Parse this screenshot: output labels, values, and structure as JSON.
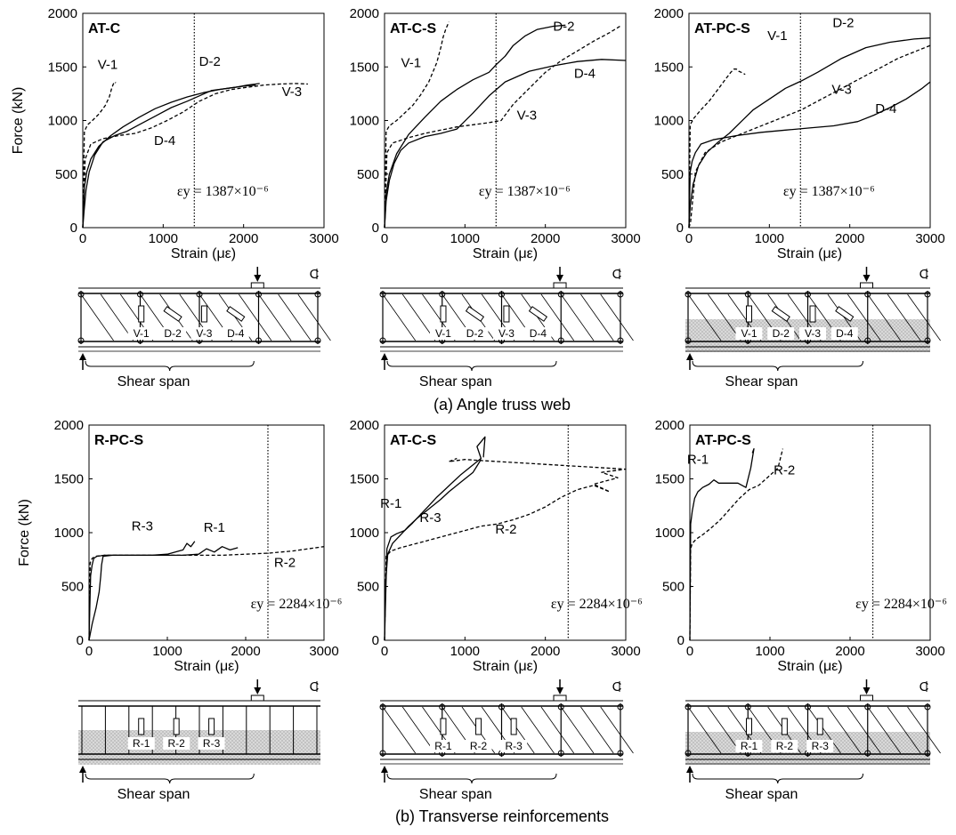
{
  "captions": {
    "a": "(a) Angle truss web",
    "b": "(b) Transverse reinforcements"
  },
  "common": {
    "ylabel": "Force (kN)",
    "xlabel": "Strain (με)",
    "shear_span": "Shear span",
    "centerline": "C",
    "ticks_y": [
      "0",
      "500",
      "1000",
      "1500",
      "2000"
    ],
    "ticks_x": [
      "0",
      "1000",
      "2000",
      "3000"
    ]
  },
  "chart_data": [
    {
      "type": "line",
      "title": "AT-C",
      "xlim": [
        0,
        3000
      ],
      "ylim": [
        0,
        2000
      ],
      "yield_strain": 1387,
      "yield_text": "εy = 1387×10⁻⁶",
      "series": [
        {
          "name": "V-1",
          "style": "dashed",
          "x": [
            0,
            20,
            60,
            120,
            200,
            280,
            330,
            360,
            380,
            400,
            410
          ],
          "y": [
            0,
            900,
            960,
            1000,
            1060,
            1140,
            1220,
            1300,
            1340,
            1360,
            1350
          ]
        },
        {
          "name": "D-2",
          "style": "solid",
          "x": [
            0,
            20,
            50,
            100,
            200,
            350,
            500,
            700,
            900,
            1100,
            1300,
            1500,
            1700,
            1900,
            2050,
            2150,
            2200
          ],
          "y": [
            0,
            380,
            520,
            640,
            760,
            860,
            940,
            1030,
            1110,
            1170,
            1220,
            1260,
            1290,
            1310,
            1330,
            1340,
            1345
          ]
        },
        {
          "name": "V-3",
          "style": "dashed",
          "x": [
            0,
            30,
            100,
            250,
            450,
            650,
            850,
            1050,
            1250,
            1450,
            1650,
            1850,
            2050,
            2250,
            2450,
            2650,
            2800
          ],
          "y": [
            0,
            640,
            780,
            830,
            860,
            880,
            930,
            1000,
            1080,
            1180,
            1250,
            1290,
            1310,
            1330,
            1340,
            1345,
            1340
          ]
        },
        {
          "name": "D-4",
          "style": "solid",
          "x": [
            0,
            15,
            40,
            80,
            150,
            250,
            400,
            550,
            700,
            900,
            1100,
            1300,
            1450,
            1600,
            1800,
            2000,
            2150
          ],
          "y": [
            0,
            150,
            350,
            520,
            680,
            800,
            860,
            900,
            960,
            1040,
            1120,
            1180,
            1230,
            1280,
            1300,
            1320,
            1330
          ]
        }
      ],
      "labels": [
        {
          "text": "V-1",
          "x": 310,
          "y": 1480
        },
        {
          "text": "D-2",
          "x": 1580,
          "y": 1510
        },
        {
          "text": "V-3",
          "x": 2600,
          "y": 1230
        },
        {
          "text": "D-4",
          "x": 1020,
          "y": 770
        }
      ]
    },
    {
      "type": "line",
      "title": "AT-C-S",
      "xlim": [
        0,
        3000
      ],
      "ylim": [
        0,
        2000
      ],
      "yield_strain": 1387,
      "yield_text": "εy = 1387×10⁻⁶",
      "series": [
        {
          "name": "V-1",
          "style": "dashed",
          "x": [
            0,
            20,
            60,
            150,
            250,
            350,
            450,
            550,
            650,
            700,
            730,
            760,
            800
          ],
          "y": [
            0,
            900,
            950,
            1000,
            1070,
            1140,
            1240,
            1360,
            1540,
            1680,
            1780,
            1850,
            1920
          ]
        },
        {
          "name": "D-2",
          "style": "solid",
          "x": [
            0,
            20,
            60,
            150,
            300,
            500,
            700,
            900,
            1100,
            1300,
            1400,
            1500,
            1600,
            1750,
            1900,
            2100,
            2250
          ],
          "y": [
            0,
            320,
            500,
            690,
            870,
            1030,
            1180,
            1290,
            1380,
            1450,
            1530,
            1600,
            1700,
            1790,
            1850,
            1880,
            1890
          ]
        },
        {
          "name": "V-3",
          "style": "dashed",
          "x": [
            0,
            30,
            100,
            300,
            500,
            700,
            900,
            1100,
            1300,
            1450,
            1600,
            1800,
            2000,
            2200,
            2400,
            2600,
            2800,
            2950
          ],
          "y": [
            0,
            700,
            790,
            840,
            880,
            910,
            940,
            960,
            980,
            1000,
            1150,
            1300,
            1450,
            1560,
            1650,
            1740,
            1820,
            1890
          ]
        },
        {
          "name": "D-4",
          "style": "solid",
          "x": [
            0,
            20,
            60,
            120,
            200,
            300,
            500,
            700,
            900,
            1100,
            1300,
            1500,
            1800,
            2100,
            2400,
            2700,
            3000
          ],
          "y": [
            0,
            250,
            440,
            600,
            720,
            790,
            850,
            880,
            920,
            1070,
            1230,
            1360,
            1460,
            1510,
            1550,
            1570,
            1560
          ]
        }
      ],
      "labels": [
        {
          "text": "V-1",
          "x": 330,
          "y": 1500
        },
        {
          "text": "D-2",
          "x": 2230,
          "y": 1840
        },
        {
          "text": "D-4",
          "x": 2490,
          "y": 1400
        },
        {
          "text": "V-3",
          "x": 1770,
          "y": 1010
        }
      ]
    },
    {
      "type": "line",
      "title": "AT-PC-S",
      "xlim": [
        0,
        3000
      ],
      "ylim": [
        0,
        2000
      ],
      "yield_strain": 1387,
      "yield_text": "εy = 1387×10⁻⁶",
      "series": [
        {
          "name": "V-1",
          "style": "dashed",
          "x": [
            0,
            15,
            60,
            150,
            250,
            350,
            450,
            520,
            560,
            590,
            620,
            650,
            700
          ],
          "y": [
            0,
            960,
            1020,
            1100,
            1180,
            1280,
            1380,
            1450,
            1480,
            1480,
            1460,
            1450,
            1430
          ]
        },
        {
          "name": "D-2",
          "style": "solid",
          "x": [
            0,
            15,
            50,
            120,
            220,
            350,
            500,
            650,
            800,
            1000,
            1200,
            1400,
            1600,
            1900,
            2200,
            2500,
            2800,
            3000
          ],
          "y": [
            0,
            200,
            400,
            580,
            700,
            790,
            880,
            990,
            1100,
            1200,
            1300,
            1370,
            1450,
            1580,
            1680,
            1730,
            1760,
            1770
          ]
        },
        {
          "name": "V-3",
          "style": "dashed",
          "x": [
            0,
            20,
            80,
            200,
            400,
            600,
            800,
            1000,
            1200,
            1400,
            1600,
            1800,
            2000,
            2200,
            2400,
            2600,
            2800,
            3000
          ],
          "y": [
            0,
            50,
            520,
            700,
            800,
            860,
            920,
            980,
            1040,
            1100,
            1180,
            1260,
            1340,
            1420,
            1500,
            1580,
            1640,
            1700
          ]
        },
        {
          "name": "D-4",
          "style": "solid",
          "x": [
            0,
            15,
            40,
            80,
            150,
            300,
            600,
            900,
            1200,
            1500,
            1800,
            2100,
            2300,
            2500,
            2700,
            2900,
            3000
          ],
          "y": [
            0,
            520,
            620,
            700,
            780,
            820,
            860,
            890,
            910,
            930,
            950,
            990,
            1050,
            1120,
            1200,
            1300,
            1360
          ]
        }
      ],
      "labels": [
        {
          "text": "V-1",
          "x": 1100,
          "y": 1750
        },
        {
          "text": "D-2",
          "x": 1920,
          "y": 1870
        },
        {
          "text": "V-3",
          "x": 1900,
          "y": 1250
        },
        {
          "text": "D-4",
          "x": 2450,
          "y": 1070
        }
      ]
    },
    {
      "type": "line",
      "title": "R-PC-S",
      "xlim": [
        0,
        3000
      ],
      "ylim": [
        0,
        2000
      ],
      "yield_strain": 2284,
      "yield_text": "εy = 2284×10⁻⁶",
      "series": [
        {
          "name": "R-1",
          "style": "solid",
          "x": [
            0,
            40,
            90,
            130,
            150,
            160,
            180,
            300,
            600,
            900,
            1200,
            1400,
            1500,
            1600,
            1700,
            1800,
            1900
          ],
          "y": [
            0,
            150,
            300,
            450,
            600,
            700,
            780,
            790,
            790,
            790,
            790,
            800,
            850,
            820,
            870,
            840,
            860
          ]
        },
        {
          "name": "R-2",
          "style": "dashed",
          "x": [
            0,
            15,
            40,
            80,
            200,
            500,
            800,
            1100,
            1400,
            1700,
            2000,
            2300,
            2600,
            3000
          ],
          "y": [
            0,
            720,
            760,
            780,
            790,
            790,
            790,
            790,
            790,
            790,
            800,
            810,
            830,
            870
          ]
        },
        {
          "name": "R-3",
          "style": "solid",
          "x": [
            0,
            20,
            40,
            60,
            100,
            200,
            400,
            600,
            800,
            1000,
            1200,
            1250,
            1300,
            1350
          ],
          "y": [
            0,
            600,
            700,
            760,
            780,
            790,
            790,
            790,
            790,
            800,
            840,
            900,
            870,
            920
          ]
        }
      ],
      "labels": [
        {
          "text": "R-3",
          "x": 680,
          "y": 1020
        },
        {
          "text": "R-1",
          "x": 1600,
          "y": 1010
        },
        {
          "text": "R-2",
          "x": 2500,
          "y": 680
        }
      ]
    },
    {
      "type": "line",
      "title": "AT-C-S",
      "xlim": [
        0,
        3000
      ],
      "ylim": [
        0,
        2000
      ],
      "yield_strain": 2284,
      "yield_text": "εy = 2284×10⁻⁶",
      "series": [
        {
          "name": "R-1",
          "style": "solid",
          "x": [
            0,
            30,
            80,
            150,
            250,
            350,
            450,
            550,
            650,
            750,
            850,
            950,
            1050,
            1150,
            1200,
            1150,
            1250,
            1230
          ],
          "y": [
            0,
            850,
            960,
            990,
            1020,
            1090,
            1170,
            1250,
            1330,
            1400,
            1470,
            1540,
            1600,
            1660,
            1690,
            1800,
            1890,
            1700
          ]
        },
        {
          "name": "R-2",
          "style": "dashed",
          "x": [
            0,
            20,
            80,
            200,
            400,
            600,
            800,
            1000,
            1200,
            1400,
            1600,
            1800,
            2000,
            2200,
            2400,
            2600,
            2800,
            2600,
            2900,
            2700,
            3000,
            1200,
            1000,
            800,
            900
          ],
          "y": [
            0,
            780,
            830,
            860,
            900,
            940,
            980,
            1020,
            1060,
            1080,
            1120,
            1170,
            1240,
            1330,
            1400,
            1440,
            1380,
            1450,
            1510,
            1560,
            1590,
            1670,
            1680,
            1660,
            1690
          ]
        },
        {
          "name": "R-3",
          "style": "solid",
          "x": [
            0,
            10,
            40,
            100,
            200,
            300,
            400,
            500,
            600,
            700,
            800,
            900,
            1000,
            1100,
            1150,
            1200
          ],
          "y": [
            0,
            500,
            800,
            900,
            980,
            1060,
            1130,
            1190,
            1250,
            1310,
            1380,
            1440,
            1500,
            1560,
            1620,
            1680
          ]
        }
      ],
      "labels": [
        {
          "text": "R-1",
          "x": 80,
          "y": 1230
        },
        {
          "text": "R-3",
          "x": 570,
          "y": 1100
        },
        {
          "text": "R-2",
          "x": 1510,
          "y": 990
        }
      ]
    },
    {
      "type": "line",
      "title": "AT-PC-S",
      "xlim": [
        0,
        3000
      ],
      "ylim": [
        0,
        2000
      ],
      "yield_strain": 2284,
      "yield_text": "εy = 2284×10⁻⁶",
      "series": [
        {
          "name": "R-1",
          "style": "solid",
          "x": [
            0,
            10,
            30,
            60,
            100,
            160,
            240,
            300,
            360,
            600,
            700,
            760,
            800,
            780
          ],
          "y": [
            0,
            1080,
            1200,
            1320,
            1380,
            1420,
            1450,
            1490,
            1460,
            1460,
            1420,
            1600,
            1780,
            1740
          ]
        },
        {
          "name": "R-2",
          "style": "dashed",
          "x": [
            0,
            10,
            30,
            80,
            160,
            260,
            380,
            500,
            620,
            740,
            860,
            980,
            1100,
            1160
          ],
          "y": [
            0,
            850,
            900,
            940,
            980,
            1040,
            1120,
            1220,
            1320,
            1400,
            1440,
            1520,
            1600,
            1780
          ]
        }
      ],
      "labels": [
        {
          "text": "R-1",
          "x": 100,
          "y": 1640
        },
        {
          "text": "R-2",
          "x": 1180,
          "y": 1540
        }
      ]
    }
  ],
  "diagrams": [
    {
      "type": "angle-truss",
      "gauges": [
        "V-1",
        "D-2",
        "V-3",
        "D-4"
      ],
      "hatched": false
    },
    {
      "type": "angle-truss",
      "gauges": [
        "V-1",
        "D-2",
        "V-3",
        "D-4"
      ],
      "hatched": false
    },
    {
      "type": "angle-truss",
      "gauges": [
        "V-1",
        "D-2",
        "V-3",
        "D-4"
      ],
      "hatched": true
    },
    {
      "type": "stirrup",
      "gauges": [
        "R-1",
        "R-2",
        "R-3"
      ],
      "hatched": true
    },
    {
      "type": "angle-truss",
      "gauges": [
        "R-1",
        "R-2",
        "R-3"
      ],
      "hatched": false
    },
    {
      "type": "angle-truss",
      "gauges": [
        "R-1",
        "R-2",
        "R-3"
      ],
      "hatched": true
    }
  ]
}
